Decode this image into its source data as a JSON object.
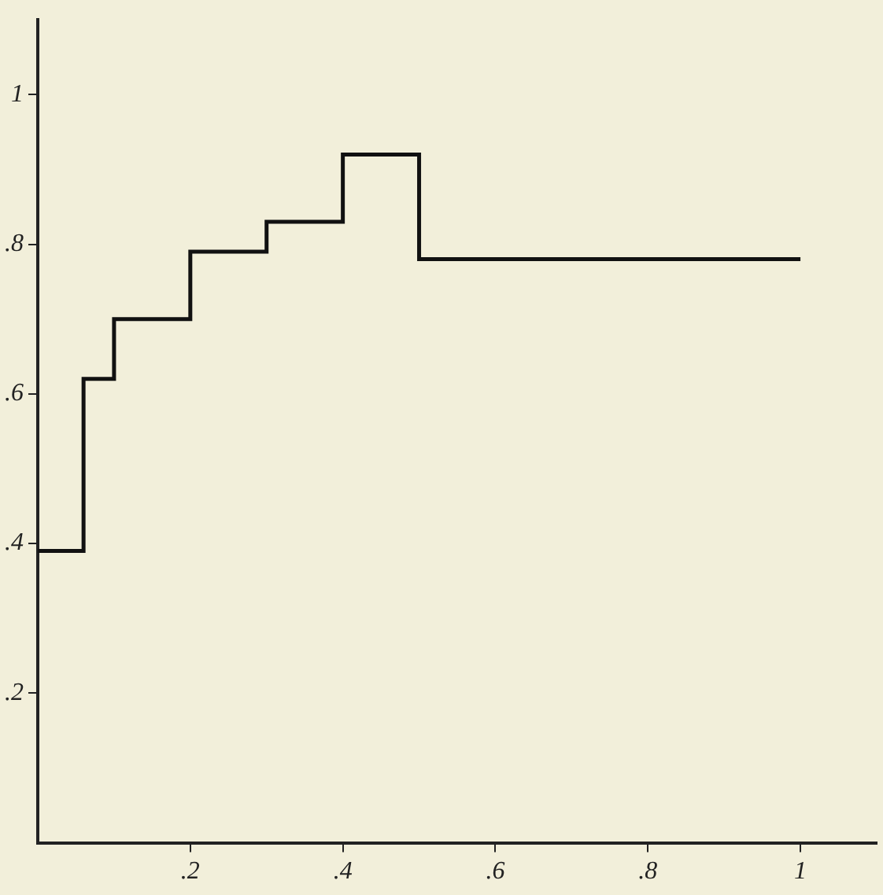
{
  "chart_data": {
    "type": "step",
    "x": [
      0,
      0.06,
      0.1,
      0.2,
      0.3,
      0.4,
      0.5,
      1.0
    ],
    "series": [
      {
        "color": "#111111",
        "values": [
          0.39,
          0.62,
          0.7,
          0.79,
          0.83,
          0.92,
          0.78,
          0.78
        ]
      }
    ],
    "xlim": [
      0,
      1.1
    ],
    "ylim": [
      0,
      1.1
    ],
    "xticks": [
      {
        "value": 0.2,
        "label": ".2"
      },
      {
        "value": 0.4,
        "label": ".4"
      },
      {
        "value": 0.6,
        "label": ".6"
      },
      {
        "value": 0.8,
        "label": ".8"
      },
      1
    ],
    "yticks": [
      {
        "value": 0.2,
        "label": ".2"
      },
      {
        "value": 0.4,
        "label": ".4"
      },
      {
        "value": 0.6,
        "label": ".6"
      },
      {
        "value": 0.8,
        "label": ".8"
      },
      1
    ],
    "grid": false,
    "legend": false,
    "marker": "none",
    "line_style": "solid"
  }
}
